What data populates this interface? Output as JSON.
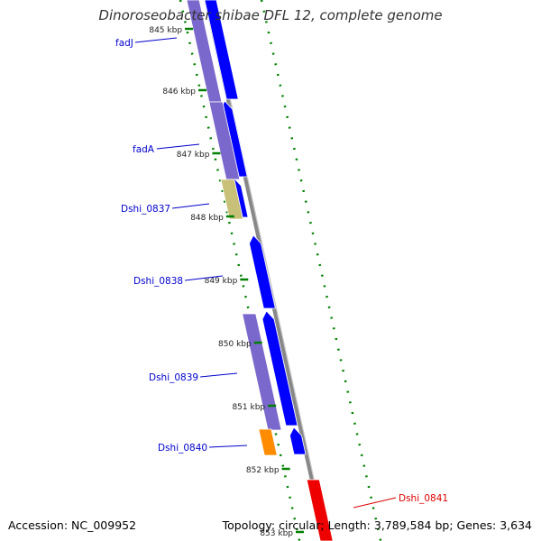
{
  "title": "Dinoroseobacter shibae DFL 12, complete genome",
  "accession": "Accession: NC_009952",
  "topology": "Topology: circular; Length: 3,789,584 bp; Genes: 3,634",
  "colors": {
    "forward_cds": "#0000ff",
    "backward_cds": "#7b68cc",
    "other": "#c8bf78",
    "orange": "#ff8c00",
    "red": "#ee0000",
    "tick": "#008000",
    "backbone": "#888888"
  },
  "ticks": [
    {
      "label": "845 kbp"
    },
    {
      "label": "846 kbp"
    },
    {
      "label": "847 kbp"
    },
    {
      "label": "848 kbp"
    },
    {
      "label": "849 kbp"
    },
    {
      "label": "850 kbp"
    },
    {
      "label": "851 kbp"
    },
    {
      "label": "852 kbp"
    },
    {
      "label": "853 kbp"
    }
  ],
  "genes": [
    {
      "name": "fadJ",
      "color": "#0000cc"
    },
    {
      "name": "fadA",
      "color": "#0000cc"
    },
    {
      "name": "Dshi_0837",
      "color": "#0000cc"
    },
    {
      "name": "Dshi_0838",
      "color": "#0000cc"
    },
    {
      "name": "Dshi_0839",
      "color": "#0000cc"
    },
    {
      "name": "Dshi_0840",
      "color": "#0000cc"
    },
    {
      "name": "Dshi_0841",
      "color": "#dd0000"
    }
  ]
}
